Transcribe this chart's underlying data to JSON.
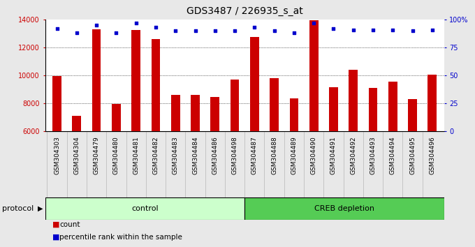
{
  "title": "GDS3487 / 226935_s_at",
  "samples": [
    "GSM304303",
    "GSM304304",
    "GSM304479",
    "GSM304480",
    "GSM304481",
    "GSM304482",
    "GSM304483",
    "GSM304484",
    "GSM304486",
    "GSM304498",
    "GSM304487",
    "GSM304488",
    "GSM304489",
    "GSM304490",
    "GSM304491",
    "GSM304492",
    "GSM304493",
    "GSM304494",
    "GSM304495",
    "GSM304496"
  ],
  "counts": [
    9950,
    7100,
    13300,
    7950,
    13250,
    12600,
    8600,
    8600,
    8450,
    9700,
    12750,
    9800,
    8350,
    13950,
    9150,
    10400,
    9100,
    9550,
    8300,
    10050
  ],
  "percentile_ranks": [
    92,
    88,
    95,
    88,
    97,
    93,
    90,
    90,
    90,
    90,
    93,
    90,
    88,
    97,
    92,
    91,
    91,
    91,
    90,
    91
  ],
  "control_samples": 10,
  "ylim_left": [
    6000,
    14000
  ],
  "ylim_right": [
    0,
    100
  ],
  "yticks_left": [
    6000,
    8000,
    10000,
    12000,
    14000
  ],
  "yticks_right": [
    0,
    25,
    50,
    75,
    100
  ],
  "grid_ticks": [
    8000,
    10000,
    12000
  ],
  "bar_color": "#cc0000",
  "dot_color": "#0000cc",
  "control_color": "#ccffcc",
  "creb_color": "#55cc55",
  "tick_bg_color": "#d8d8d8",
  "control_label": "control",
  "creb_label": "CREB depletion",
  "protocol_label": "protocol",
  "legend_count": "count",
  "legend_percentile": "percentile rank within the sample",
  "bg_color": "#e8e8e8",
  "plot_bg": "#ffffff",
  "title_fontsize": 10,
  "tick_fontsize": 7,
  "label_fontsize": 8
}
